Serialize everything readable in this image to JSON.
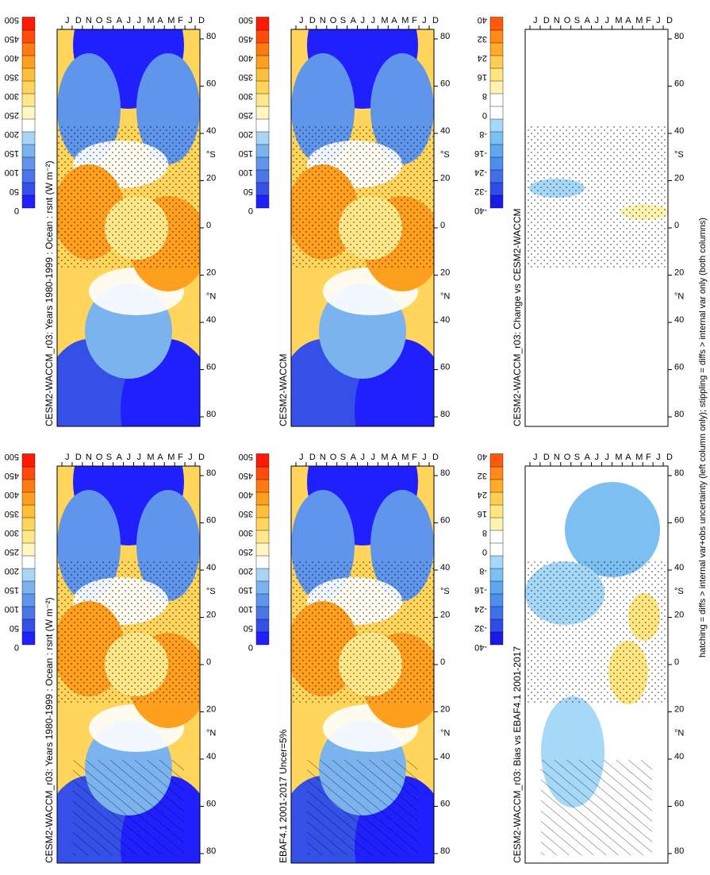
{
  "figure": {
    "footnote": "hatching = diffs > internal var+obs uncertainty (left column only); stippling = diffs > internal var only (both columns)"
  },
  "colors": {
    "abs_scale": [
      "#ffffff",
      "#2020ff",
      "#3450e6",
      "#4a76e8",
      "#5f95ea",
      "#7bb3ef",
      "#a8d4f6",
      "#ffffff",
      "#fff6c2",
      "#ffe88a",
      "#ffd55c",
      "#ffbf3a",
      "#ff9f1e",
      "#ff7b12",
      "#ff4b0a",
      "#ff1a00"
    ],
    "diff_scale": [
      "#1a1ae6",
      "#2e4de6",
      "#3f70e8",
      "#4d8deb",
      "#5fa7ee",
      "#7cc0f2",
      "#a6d8f7",
      "#ffffff",
      "#ffffff",
      "#fff3b0",
      "#ffe680",
      "#ffcf52",
      "#ffad2b",
      "#ff8a18",
      "#ff5a0b",
      "#ff1f00"
    ]
  },
  "chart_data": [
    {
      "type": "heatmap",
      "title": "CESM2-WACCM_r03: Years 1980-1999 : Ocean : rsnt (W m⁻²)",
      "xlabel": "",
      "ylabel": "",
      "x_ticks": [
        "D",
        "J",
        "F",
        "M",
        "A",
        "M",
        "J",
        "J",
        "A",
        "S",
        "O",
        "N",
        "D",
        "J"
      ],
      "y_ticks": [
        "80",
        "60",
        "40",
        "20",
        "0",
        "20",
        "40",
        "60",
        "80"
      ],
      "y_unit_labels": [
        "°N",
        "°S"
      ],
      "colorbar": {
        "labels": [
          "500",
          "450",
          "400",
          "350",
          "300",
          "250",
          "200",
          "150",
          "100",
          "50",
          "0"
        ]
      },
      "overlay": "hatching+stippling"
    },
    {
      "type": "heatmap",
      "title": "CESM2-WACCM_r03: Years 1980-1999 : Ocean : rsnt (W m⁻²)",
      "xlabel": "",
      "ylabel": "",
      "x_ticks": [
        "D",
        "J",
        "F",
        "M",
        "A",
        "M",
        "J",
        "J",
        "A",
        "S",
        "O",
        "N",
        "D",
        "J"
      ],
      "y_ticks": [
        "80",
        "60",
        "40",
        "20",
        "0",
        "20",
        "40",
        "60",
        "80"
      ],
      "y_unit_labels": [
        "°N",
        "°S"
      ],
      "colorbar": {
        "labels": [
          "500",
          "450",
          "400",
          "350",
          "300",
          "250",
          "200",
          "150",
          "100",
          "50",
          "0"
        ]
      },
      "overlay": "stippling"
    },
    {
      "type": "heatmap",
      "title": "EBAF4.1 2001-2017 Uncer=5%",
      "xlabel": "",
      "ylabel": "",
      "x_ticks": [
        "D",
        "J",
        "F",
        "M",
        "A",
        "M",
        "J",
        "J",
        "A",
        "S",
        "O",
        "N",
        "D",
        "J"
      ],
      "y_ticks": [
        "80",
        "60",
        "40",
        "20",
        "0",
        "20",
        "40",
        "60",
        "80"
      ],
      "y_unit_labels": [
        "°N",
        "°S"
      ],
      "colorbar": {
        "labels": [
          "500",
          "450",
          "400",
          "350",
          "300",
          "250",
          "200",
          "150",
          "100",
          "50",
          "0"
        ]
      },
      "overlay": "hatching+stippling"
    },
    {
      "type": "heatmap",
      "title": "CESM2-WACCM",
      "xlabel": "",
      "ylabel": "",
      "x_ticks": [
        "D",
        "J",
        "F",
        "M",
        "A",
        "M",
        "J",
        "J",
        "A",
        "S",
        "O",
        "N",
        "D",
        "J"
      ],
      "y_ticks": [
        "80",
        "60",
        "40",
        "20",
        "0",
        "20",
        "40",
        "60",
        "80"
      ],
      "y_unit_labels": [
        "°N",
        "°S"
      ],
      "colorbar": {
        "labels": [
          "500",
          "450",
          "400",
          "350",
          "300",
          "250",
          "200",
          "150",
          "100",
          "50",
          "0"
        ]
      },
      "overlay": "stippling"
    },
    {
      "type": "heatmap",
      "title": "CESM2-WACCM_r03: Bias vs EBAF4.1 2001-2017",
      "xlabel": "",
      "ylabel": "",
      "x_ticks": [
        "D",
        "J",
        "F",
        "M",
        "A",
        "M",
        "J",
        "J",
        "A",
        "S",
        "O",
        "N",
        "D",
        "J"
      ],
      "y_ticks": [
        "80",
        "60",
        "40",
        "20",
        "0",
        "20",
        "40",
        "60",
        "80"
      ],
      "y_unit_labels": [
        "°N",
        "°S"
      ],
      "colorbar": {
        "labels": [
          "40",
          "32",
          "24",
          "16",
          "8",
          "0",
          "-8",
          "-16",
          "-24",
          "-32",
          "-40"
        ]
      },
      "overlay": "hatching+stippling"
    },
    {
      "type": "heatmap",
      "title": "CESM2-WACCM_r03: Change vs CESM2-WACCM",
      "xlabel": "",
      "ylabel": "",
      "x_ticks": [
        "D",
        "J",
        "F",
        "M",
        "A",
        "M",
        "J",
        "J",
        "A",
        "S",
        "O",
        "N",
        "D",
        "J"
      ],
      "y_ticks": [
        "80",
        "60",
        "40",
        "20",
        "0",
        "20",
        "40",
        "60",
        "80"
      ],
      "y_unit_labels": [
        "°N",
        "°S"
      ],
      "colorbar": {
        "labels": [
          "40",
          "32",
          "24",
          "16",
          "8",
          "0",
          "-8",
          "-16",
          "-24",
          "-32",
          "-40"
        ]
      },
      "overlay": "stippling"
    }
  ]
}
